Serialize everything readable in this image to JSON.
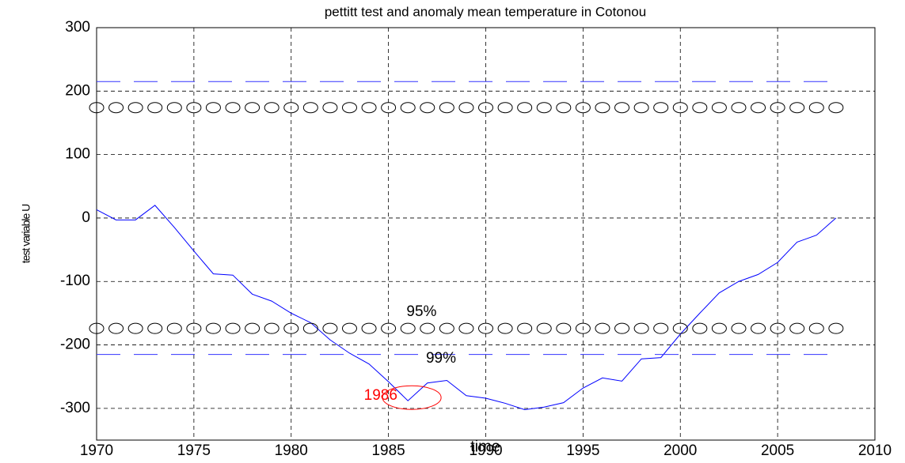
{
  "chart_data": {
    "type": "line",
    "title": "pettitt test and anomaly mean temperature in Cotonou",
    "x_label": "time",
    "y_label": "test variable U",
    "x": [
      1970,
      1971,
      1972,
      1973,
      1974,
      1975,
      1976,
      1977,
      1978,
      1979,
      1980,
      1981,
      1982,
      1983,
      1984,
      1985,
      1986,
      1987,
      1988,
      1989,
      1990,
      1991,
      1992,
      1993,
      1994,
      1995,
      1996,
      1997,
      1998,
      1999,
      2000,
      2001,
      2002,
      2003,
      2004,
      2005,
      2006,
      2007,
      2008
    ],
    "series": [
      {
        "color": "#0000ff",
        "style": "solid",
        "values": [
          13,
          -3,
          -3,
          20,
          -15,
          -52,
          -88,
          -90,
          -120,
          -131,
          -150,
          -165,
          -192,
          -213,
          -230,
          -258,
          -288,
          -260,
          -256,
          -280,
          -284,
          -292,
          -302,
          -298,
          -291,
          -268,
          -252,
          -257,
          -222,
          -220,
          -183,
          -150,
          -118,
          -100,
          -89,
          -70,
          -38,
          -27,
          0
        ]
      },
      {
        "color": "#3333ff",
        "style": "dashed",
        "values": [
          215,
          215,
          215,
          215,
          215,
          215,
          215,
          215,
          215,
          215,
          215,
          215,
          215,
          215,
          215,
          215,
          215,
          215,
          215,
          215,
          215,
          215,
          215,
          215,
          215,
          215,
          215,
          215,
          215,
          215,
          215,
          215,
          215,
          215,
          215,
          215,
          215,
          215,
          215
        ]
      },
      {
        "color": "#3333ff",
        "style": "dashed",
        "values": [
          -215,
          -215,
          -215,
          -215,
          -215,
          -215,
          -215,
          -215,
          -215,
          -215,
          -215,
          -215,
          -215,
          -215,
          -215,
          -215,
          -215,
          -215,
          -215,
          -215,
          -215,
          -215,
          -215,
          -215,
          -215,
          -215,
          -215,
          -215,
          -215,
          -215,
          -215,
          -215,
          -215,
          -215,
          -215,
          -215,
          -215,
          -215,
          -215
        ]
      },
      {
        "color": "#000000",
        "style": "circles",
        "values": [
          174,
          174,
          174,
          174,
          174,
          174,
          174,
          174,
          174,
          174,
          174,
          174,
          174,
          174,
          174,
          174,
          174,
          174,
          174,
          174,
          174,
          174,
          174,
          174,
          174,
          174,
          174,
          174,
          174,
          174,
          174,
          174,
          174,
          174,
          174,
          174,
          174,
          174,
          174
        ]
      },
      {
        "color": "#000000",
        "style": "circles",
        "values": [
          -174,
          -174,
          -174,
          -174,
          -174,
          -174,
          -174,
          -174,
          -174,
          -174,
          -174,
          -174,
          -174,
          -174,
          -174,
          -174,
          -174,
          -174,
          -174,
          -174,
          -174,
          -174,
          -174,
          -174,
          -174,
          -174,
          -174,
          -174,
          -174,
          -174,
          -174,
          -174,
          -174,
          -174,
          -174,
          -174,
          -174,
          -174,
          -174
        ]
      }
    ],
    "annotations": [
      {
        "text": "95%",
        "x": 1986.7,
        "y": -148,
        "color": "#000000"
      },
      {
        "text": "99%",
        "x": 1987.7,
        "y": -222,
        "color": "#000000"
      },
      {
        "text": "1986",
        "x": 1984.6,
        "y": -280,
        "color": "#ff0000"
      }
    ],
    "highlight": {
      "x": 1986.2,
      "y": -283,
      "color": "#ff0000"
    },
    "xlim": [
      1970,
      2010
    ],
    "xticks": [
      1970,
      1975,
      1980,
      1985,
      1990,
      1995,
      2000,
      2005,
      2010
    ],
    "ylim": [
      -350,
      300
    ],
    "yticks": [
      -300,
      -200,
      -100,
      0,
      100,
      200,
      300
    ],
    "grid": true
  }
}
